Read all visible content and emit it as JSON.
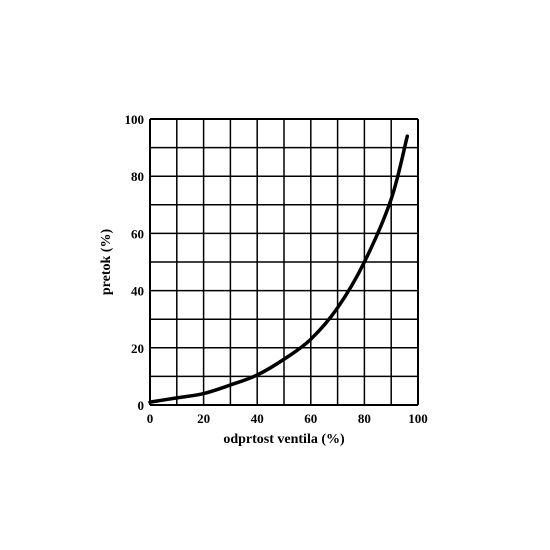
{
  "chart_data": {
    "type": "line",
    "title": "",
    "xlabel": "odprtost ventila (%)",
    "ylabel": "pretok (%)",
    "xlim": [
      0,
      100
    ],
    "ylim": [
      0,
      100
    ],
    "x_ticks": [
      "0",
      "20",
      "40",
      "60",
      "80",
      "100"
    ],
    "y_ticks": [
      "0",
      "20",
      "40",
      "60",
      "80",
      "100"
    ],
    "grid": true,
    "grid_step_x": 10,
    "grid_step_y": 10,
    "legend": "none",
    "line_color": "#000000",
    "series": [
      {
        "x": [
          0,
          10,
          20,
          30,
          40,
          50,
          60,
          70,
          80,
          90,
          96
        ],
        "y": [
          1,
          2.5,
          4,
          7,
          10.5,
          16,
          23,
          34,
          50,
          72,
          94
        ]
      }
    ]
  }
}
